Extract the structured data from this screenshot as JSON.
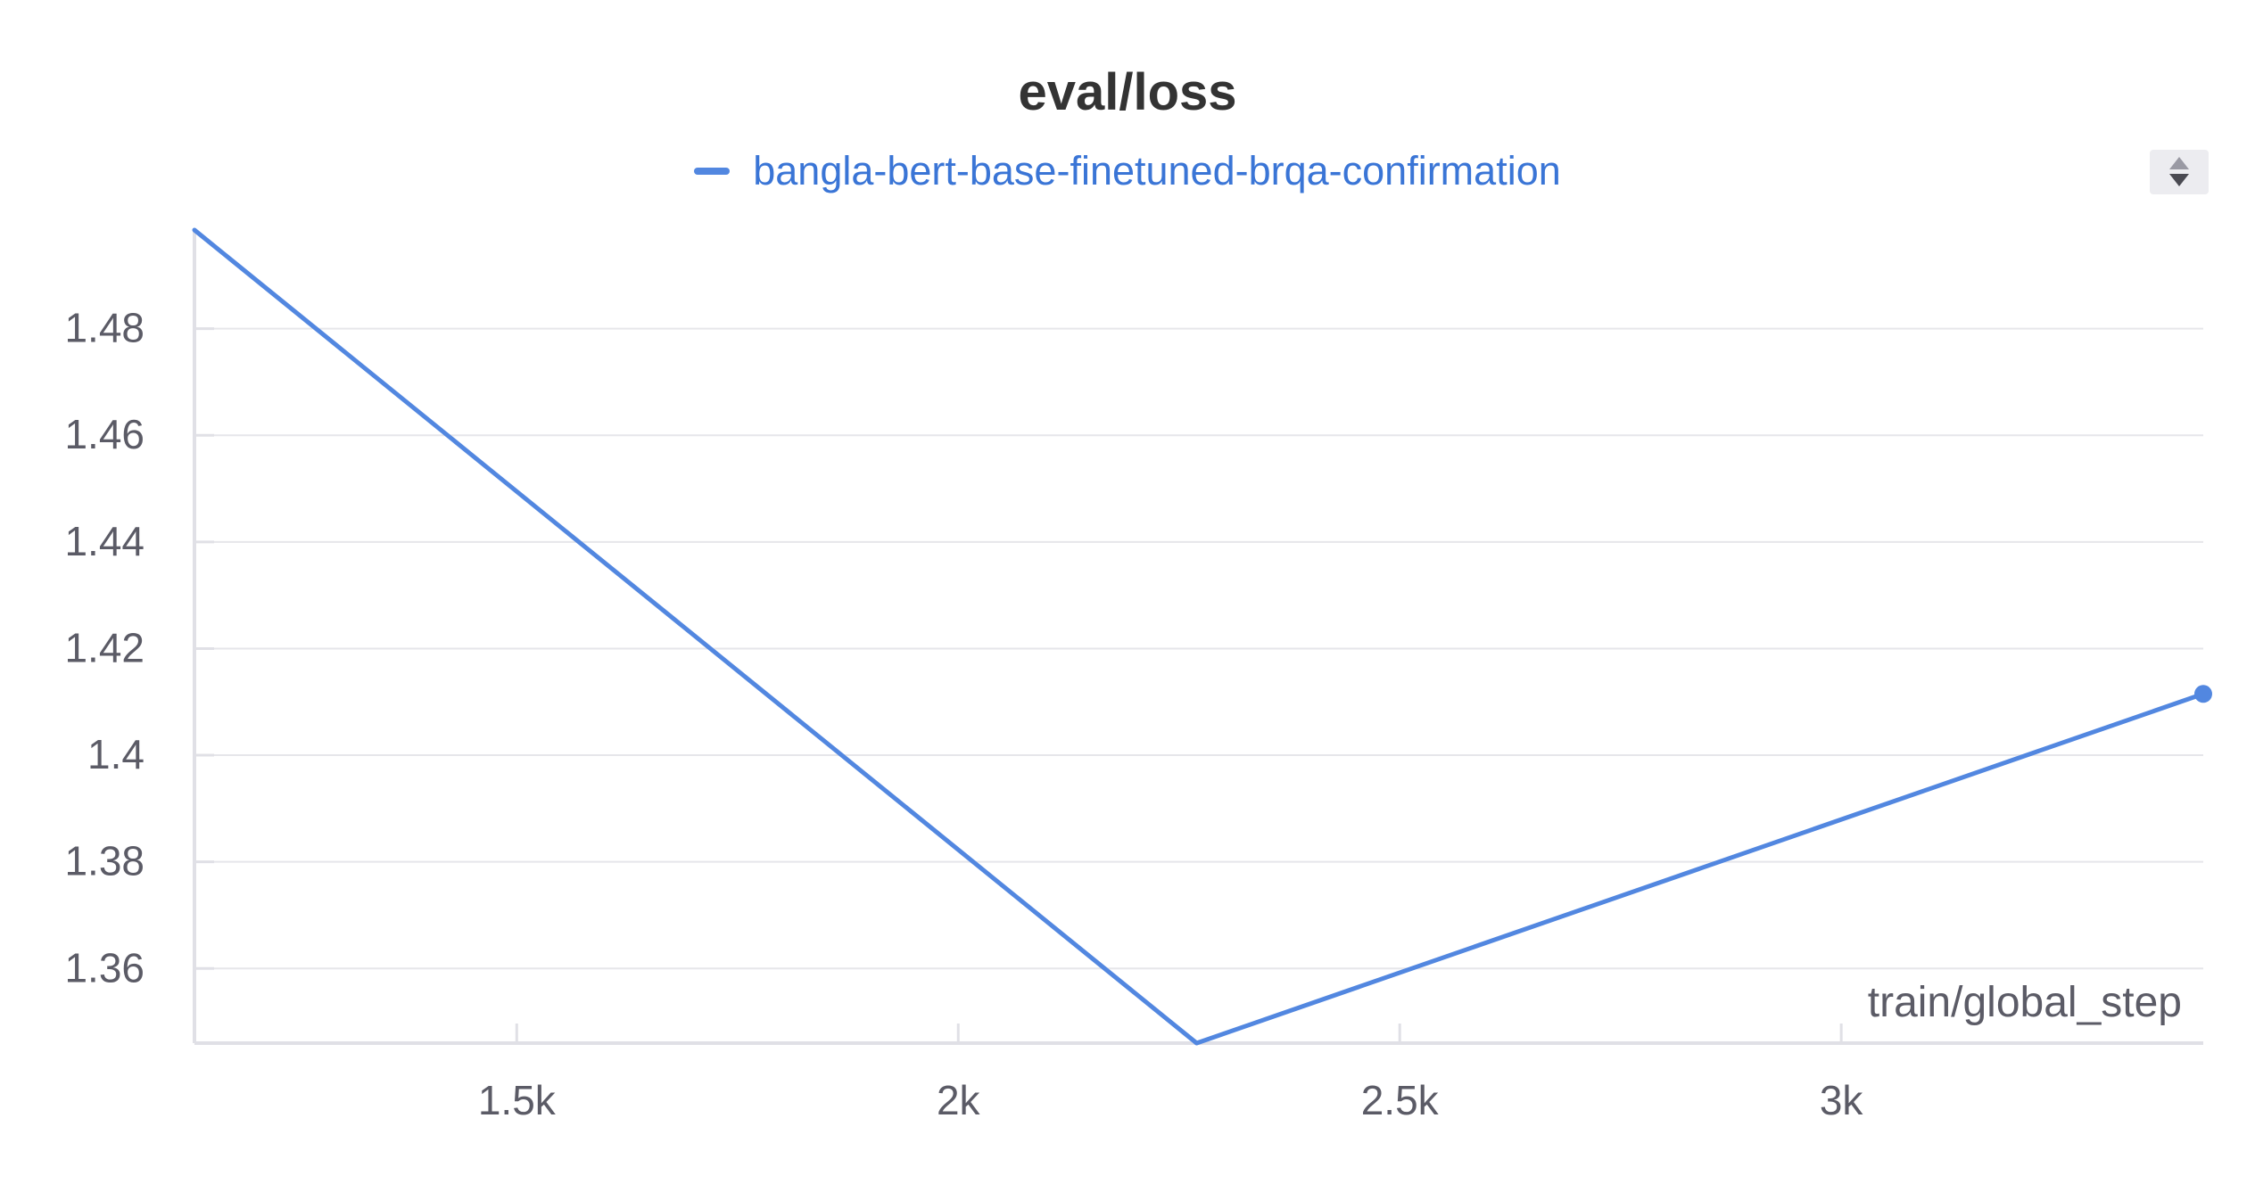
{
  "chart_data": {
    "type": "line",
    "title": "eval/loss",
    "xlabel": "train/global_step",
    "ylabel": "",
    "xlim": [
      1135,
      3410
    ],
    "ylim": [
      1.346,
      1.4985
    ],
    "x_ticks": [
      1500,
      2000,
      2500,
      3000
    ],
    "x_tick_labels": [
      "1.5k",
      "2k",
      "2.5k",
      "3k"
    ],
    "y_ticks": [
      1.36,
      1.38,
      1.4,
      1.42,
      1.44,
      1.46,
      1.48
    ],
    "y_tick_labels": [
      "1.36",
      "1.38",
      "1.4",
      "1.42",
      "1.44",
      "1.46",
      "1.48"
    ],
    "grid": true,
    "legend_position": "top-center",
    "series": [
      {
        "name": "bangla-bert-base-finetuned-brqa-confirmation",
        "color": "#5287e0",
        "x": [
          1135,
          2270,
          3410
        ],
        "y": [
          1.4985,
          1.346,
          1.4115
        ],
        "end_marker": true
      }
    ]
  },
  "icons": {
    "legend_scroll": "sort-arrows-icon"
  }
}
